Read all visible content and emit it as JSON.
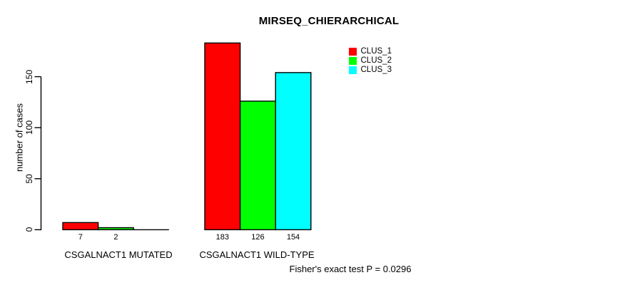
{
  "chart_data": {
    "type": "bar",
    "title": "MIRSEQ_CHIERARCHICAL",
    "ylabel": "number of cases",
    "xlabel": "",
    "categories": [
      "CSGALNACT1 MUTATED",
      "CSGALNACT1 WILD-TYPE"
    ],
    "series": [
      {
        "name": "CLUS_1",
        "color": "#ff0000",
        "values": [
          7,
          183
        ]
      },
      {
        "name": "CLUS_2",
        "color": "#00ff00",
        "values": [
          2,
          126
        ]
      },
      {
        "name": "CLUS_3",
        "color": "#00ffff",
        "values": [
          0,
          154
        ]
      }
    ],
    "bar_value_labels": [
      [
        "7",
        "2",
        ""
      ],
      [
        "183",
        "126",
        "154"
      ]
    ],
    "yticks": [
      0,
      50,
      100,
      150
    ],
    "ylim": [
      0,
      195
    ],
    "grid": false,
    "legend_position": "top-right",
    "bar_border_color": "#000000",
    "axis_color": "#000000",
    "background_color": "#ffffff",
    "footnote": "Fisher's exact test P = 0.0296"
  }
}
